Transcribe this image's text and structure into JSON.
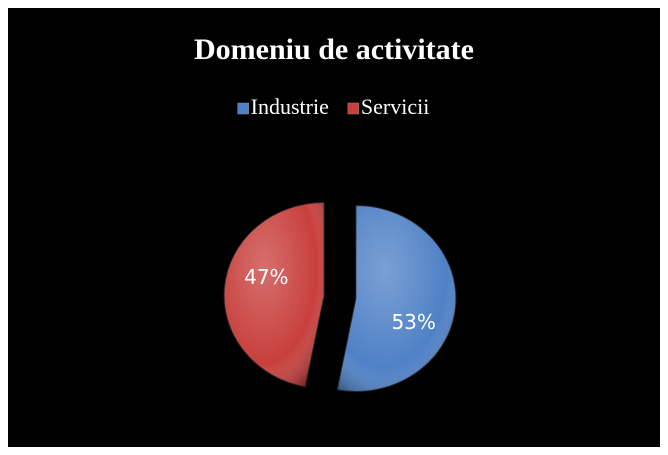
{
  "chart_data": {
    "type": "pie",
    "title": "Domeniu de activitate",
    "categories": [
      "Industrie",
      "Servicii"
    ],
    "values": [
      53,
      47
    ],
    "value_labels": [
      "53%",
      "47%"
    ],
    "colors": [
      "#4f81c6",
      "#c8403d"
    ],
    "legend": "top"
  }
}
